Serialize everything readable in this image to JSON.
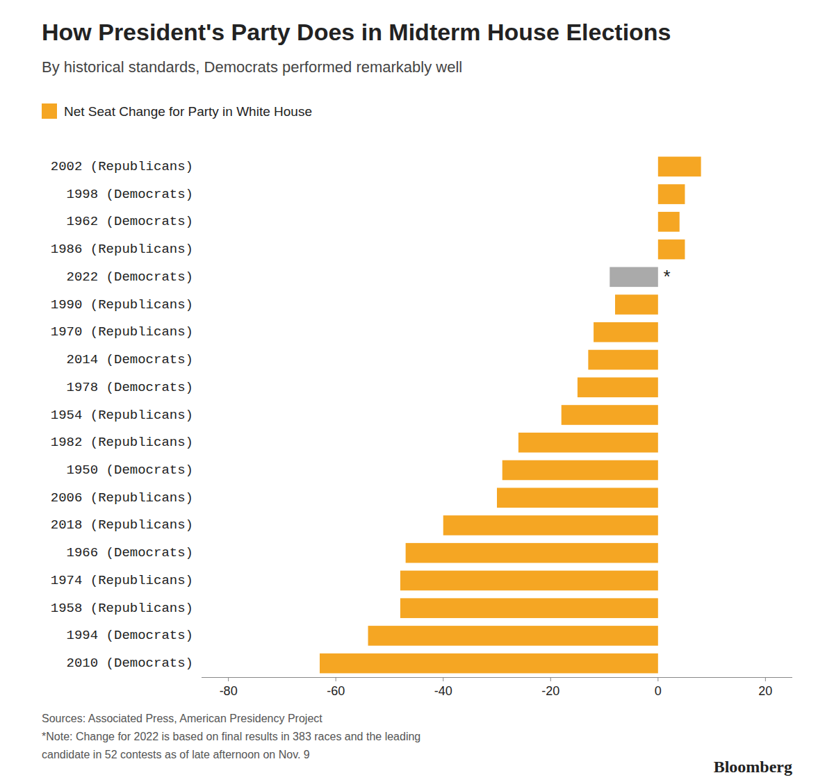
{
  "chart_data": {
    "type": "bar",
    "orientation": "horizontal",
    "title": "How President's Party Does in Midterm House Elections",
    "subtitle": "By historical standards, Democrats performed remarkably well",
    "categories": [
      "2002 (Republicans)",
      "  1998 (Democrats)",
      "  1962 (Democrats)",
      "1986 (Republicans)",
      "  2022 (Democrats)",
      "1990 (Republicans)",
      "1970 (Republicans)",
      "  2014 (Democrats)",
      "  1978 (Democrats)",
      "1954 (Republicans)",
      "1982 (Republicans)",
      "  1950 (Democrats)",
      "2006 (Republicans)",
      "2018 (Republicans)",
      "  1966 (Democrats)",
      "1974 (Republicans)",
      "1958 (Republicans)",
      "  1994 (Democrats)",
      "  2010 (Democrats)"
    ],
    "series": [
      {
        "name": "Net Seat Change for Party in White House",
        "color": "#F5A623",
        "colors": [
          "#F5A623",
          "#F5A623",
          "#F5A623",
          "#F5A623",
          "#AAAAAA",
          "#F5A623",
          "#F5A623",
          "#F5A623",
          "#F5A623",
          "#F5A623",
          "#F5A623",
          "#F5A623",
          "#F5A623",
          "#F5A623",
          "#F5A623",
          "#F5A623",
          "#F5A623",
          "#F5A623",
          "#F5A623"
        ],
        "values": [
          8,
          5,
          4,
          5,
          -9,
          -8,
          -12,
          -13,
          -15,
          -18,
          -26,
          -29,
          -30,
          -40,
          -47,
          -48,
          -48,
          -54,
          -63
        ]
      }
    ],
    "xlim": [
      -85,
      25
    ],
    "xticks": [
      -80,
      -60,
      -40,
      -20,
      0,
      20
    ],
    "grid": false,
    "legend": "top left",
    "annotations": [
      {
        "text": "*",
        "x": 1.0,
        "y": "  2022 (Democrats)"
      }
    ],
    "source": [
      "Sources: Associated Press, American Presidency Project",
      "*Note: Change for 2022 is based on final results in 383 races and the leading",
      "candidate in 52 contests as of late afternoon on Nov. 9"
    ],
    "credit": "Bloomberg"
  }
}
